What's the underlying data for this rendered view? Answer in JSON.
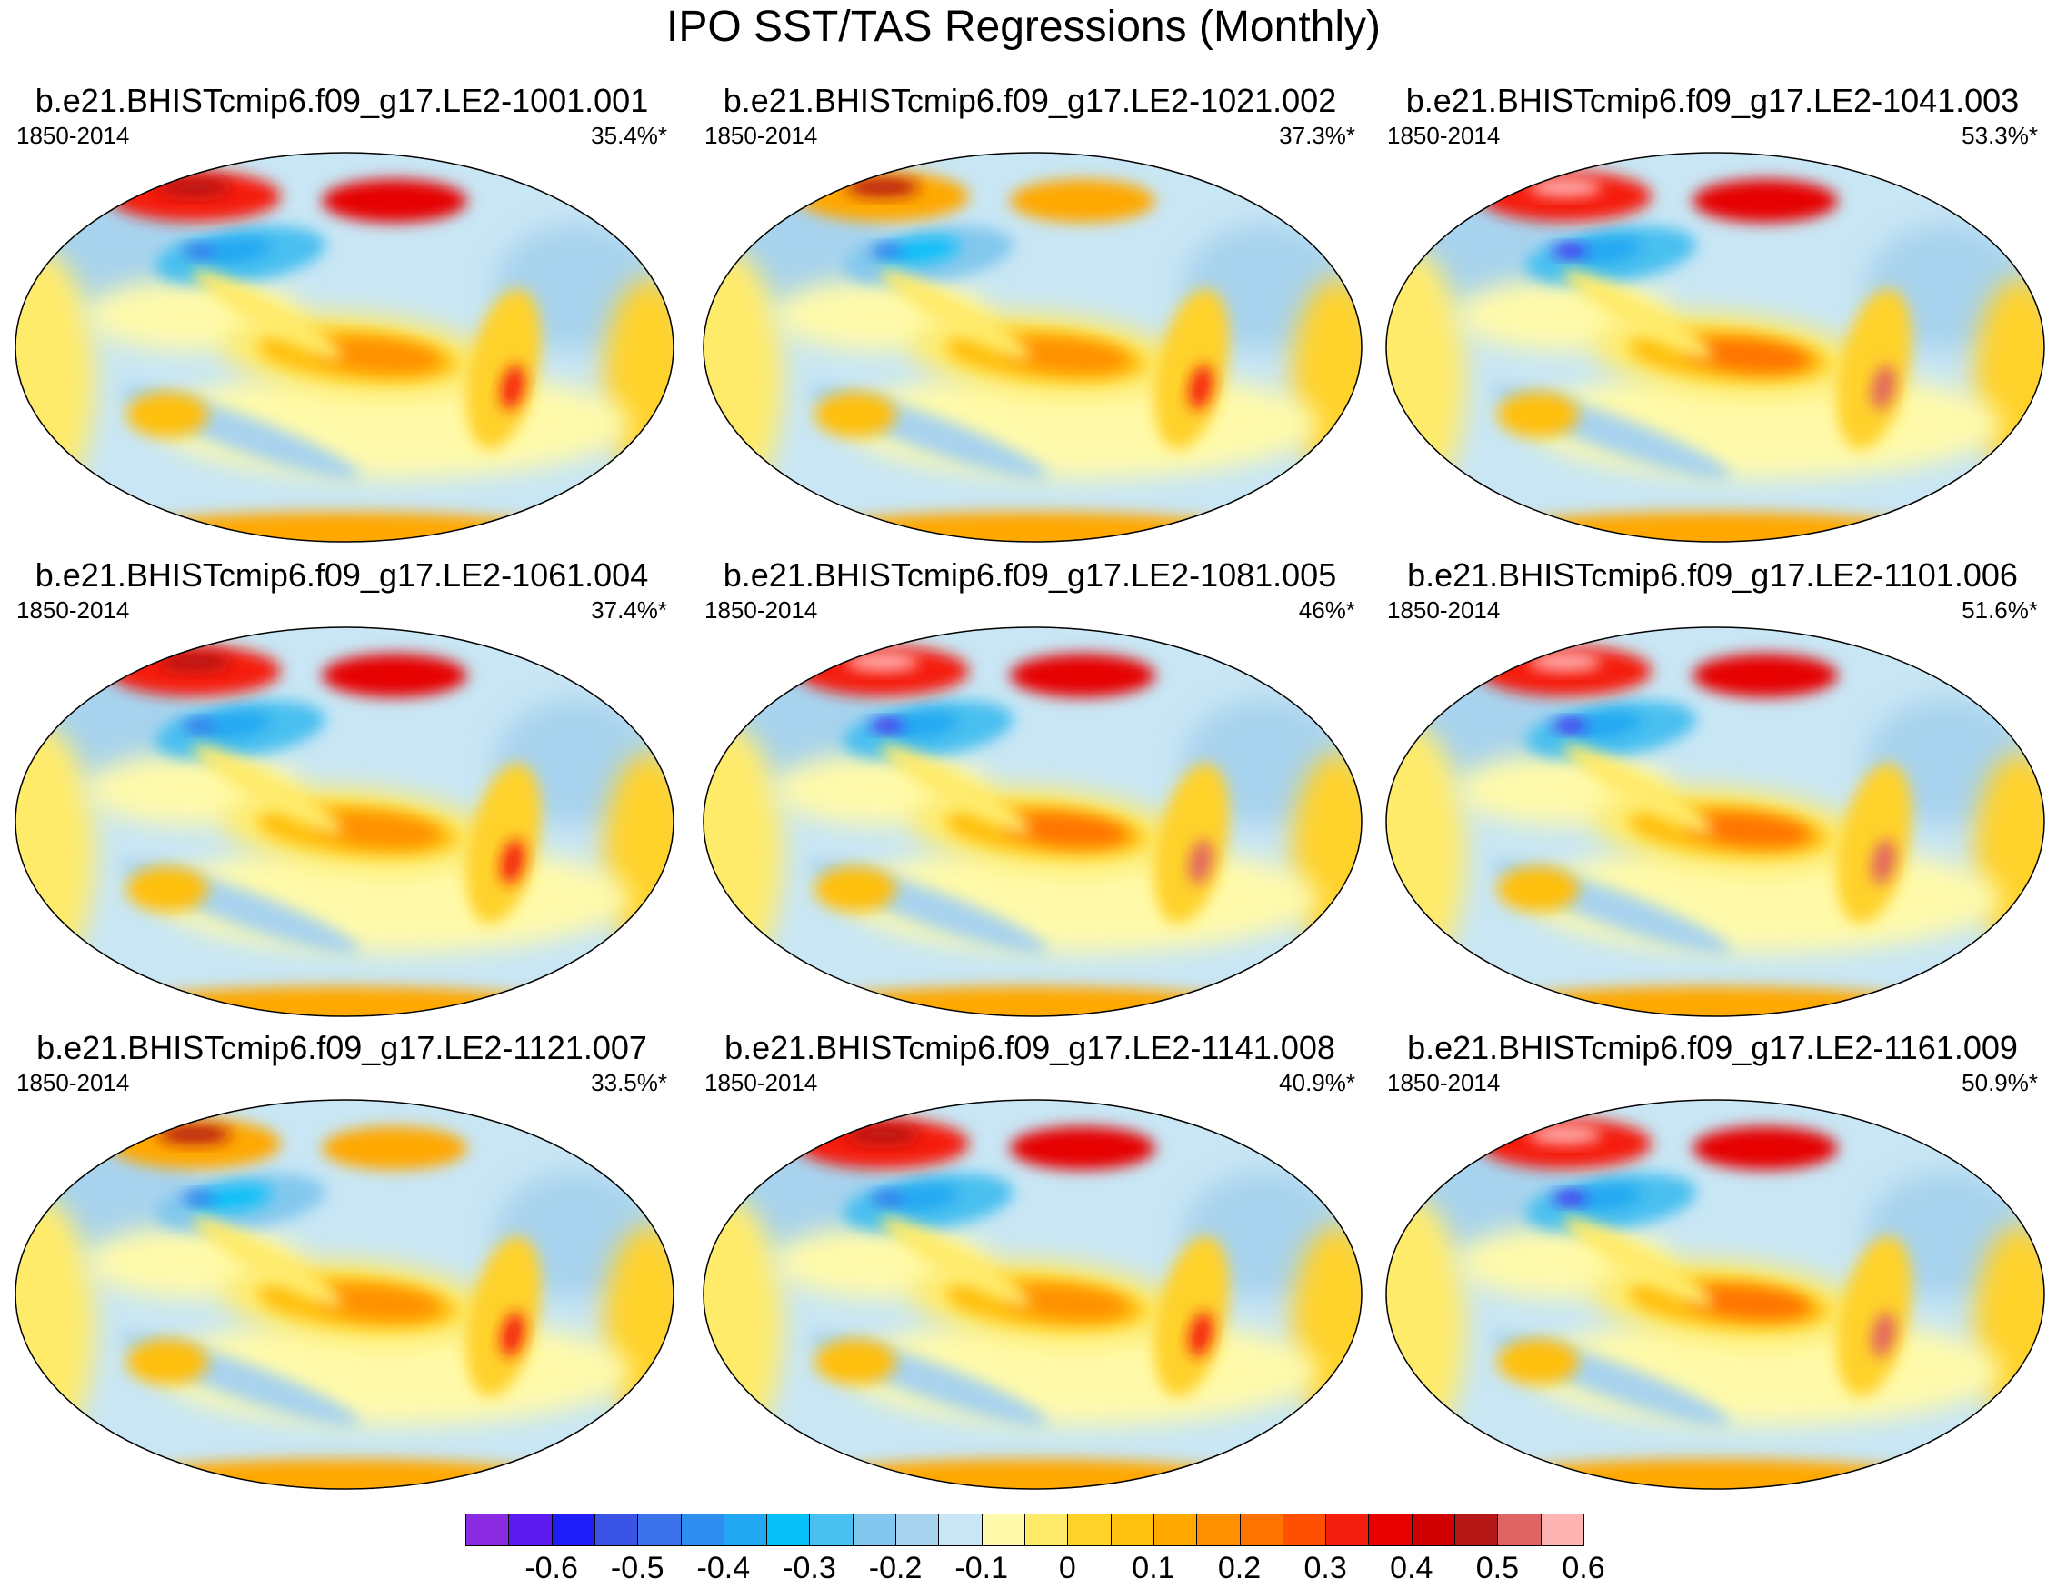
{
  "title": "IPO SST/TAS Regressions (Monthly)",
  "period": "1850-2014",
  "panels": [
    {
      "name": "b.e21.BHISTcmip6.f09_g17.LE2-1001.001",
      "stat": "35.4%*",
      "amp": 1.0
    },
    {
      "name": "b.e21.BHISTcmip6.f09_g17.LE2-1021.002",
      "stat": "37.3%*",
      "amp": 0.85
    },
    {
      "name": "b.e21.BHISTcmip6.f09_g17.LE2-1041.003",
      "stat": "53.3%*",
      "amp": 1.1
    },
    {
      "name": "b.e21.BHISTcmip6.f09_g17.LE2-1061.004",
      "stat": "37.4%*",
      "amp": 1.0
    },
    {
      "name": "b.e21.BHISTcmip6.f09_g17.LE2-1081.005",
      "stat": "46%*",
      "amp": 1.05
    },
    {
      "name": "b.e21.BHISTcmip6.f09_g17.LE2-1101.006",
      "stat": "51.6%*",
      "amp": 1.1
    },
    {
      "name": "b.e21.BHISTcmip6.f09_g17.LE2-1121.007",
      "stat": "33.5%*",
      "amp": 0.8
    },
    {
      "name": "b.e21.BHISTcmip6.f09_g17.LE2-1141.008",
      "stat": "40.9%*",
      "amp": 1.0
    },
    {
      "name": "b.e21.BHISTcmip6.f09_g17.LE2-1161.009",
      "stat": "50.9%*",
      "amp": 1.05
    }
  ],
  "colorbar": {
    "colors": [
      "#8a2be2",
      "#5a1af0",
      "#1f1ef8",
      "#3a55e6",
      "#3b74ea",
      "#2e8ff0",
      "#22a8f2",
      "#08c0f8",
      "#48c0f0",
      "#82c8ee",
      "#a8d3ee",
      "#c8e6f4",
      "#fffaaa",
      "#ffeb6a",
      "#ffd22a",
      "#ffc010",
      "#ffa800",
      "#ff9000",
      "#ff7400",
      "#ff5000",
      "#f51f10",
      "#e60000",
      "#d00000",
      "#b51616",
      "#e06464",
      "#ffb4b4"
    ],
    "labels": [
      "-0.6",
      "-0.5",
      "-0.4",
      "-0.3",
      "-0.2",
      "-0.1",
      "0",
      "0.1",
      "0.2",
      "0.3",
      "0.4",
      "0.5",
      "0.6"
    ]
  }
}
